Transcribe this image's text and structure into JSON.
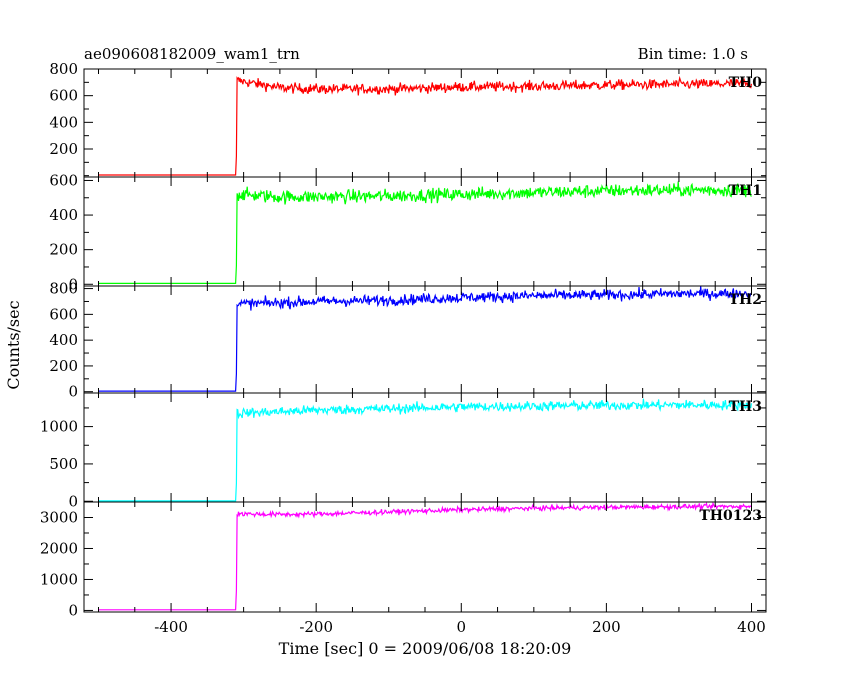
{
  "header": {
    "title": "ae090608182009_wam1_trn",
    "bin_time": "Bin time: 1.0 s"
  },
  "chart_data": {
    "type": "line",
    "xlabel": "Time [sec] 0 = 2009/06/08 18:20:09",
    "ylabel": "Counts/sec",
    "xlim": [
      -520,
      420
    ],
    "x_ticks": [
      -400,
      -200,
      0,
      200,
      400
    ],
    "x_range": [
      -500,
      400
    ],
    "trigger_x": -310,
    "panels": [
      {
        "name": "TH0",
        "color": "#ff0000",
        "ylim": [
          -10,
          800
        ],
        "y_ticks": [
          200,
          400,
          600,
          800
        ],
        "pre_level": 5,
        "points": [
          [
            -310,
            715
          ],
          [
            -250,
            660
          ],
          [
            -200,
            650
          ],
          [
            -100,
            650
          ],
          [
            0,
            665
          ],
          [
            100,
            670
          ],
          [
            200,
            680
          ],
          [
            300,
            685
          ],
          [
            400,
            690
          ]
        ],
        "noise": 35
      },
      {
        "name": "TH1",
        "color": "#00ff00",
        "ylim": [
          -10,
          620
        ],
        "y_ticks": [
          0,
          200,
          400,
          600
        ],
        "pre_level": 5,
        "points": [
          [
            -310,
            520
          ],
          [
            -250,
            505
          ],
          [
            -200,
            505
          ],
          [
            -100,
            510
          ],
          [
            0,
            520
          ],
          [
            100,
            530
          ],
          [
            200,
            540
          ],
          [
            300,
            545
          ],
          [
            400,
            545
          ]
        ],
        "noise": 35
      },
      {
        "name": "TH2",
        "color": "#0000ff",
        "ylim": [
          -10,
          820
        ],
        "y_ticks": [
          0,
          200,
          400,
          600,
          800
        ],
        "pre_level": 5,
        "points": [
          [
            -310,
            680
          ],
          [
            -250,
            690
          ],
          [
            -200,
            700
          ],
          [
            -100,
            710
          ],
          [
            0,
            730
          ],
          [
            100,
            745
          ],
          [
            200,
            750
          ],
          [
            300,
            760
          ],
          [
            400,
            760
          ]
        ],
        "noise": 38
      },
      {
        "name": "TH3",
        "color": "#00ffff",
        "ylim": [
          -10,
          1450
        ],
        "y_ticks": [
          0,
          500,
          1000
        ],
        "pre_level": 5,
        "points": [
          [
            -310,
            1180
          ],
          [
            -250,
            1200
          ],
          [
            -200,
            1220
          ],
          [
            -100,
            1240
          ],
          [
            0,
            1265
          ],
          [
            100,
            1275
          ],
          [
            200,
            1285
          ],
          [
            300,
            1290
          ],
          [
            400,
            1290
          ]
        ],
        "noise": 60
      },
      {
        "name": "TH0123",
        "color": "#ff00ff",
        "ylim": [
          -50,
          3500
        ],
        "y_ticks": [
          0,
          1000,
          2000,
          3000
        ],
        "pre_level": 20,
        "points": [
          [
            -310,
            3120
          ],
          [
            -250,
            3100
          ],
          [
            -200,
            3110
          ],
          [
            -100,
            3180
          ],
          [
            0,
            3250
          ],
          [
            100,
            3300
          ],
          [
            200,
            3330
          ],
          [
            300,
            3350
          ],
          [
            400,
            3360
          ]
        ],
        "noise": 70
      }
    ]
  }
}
